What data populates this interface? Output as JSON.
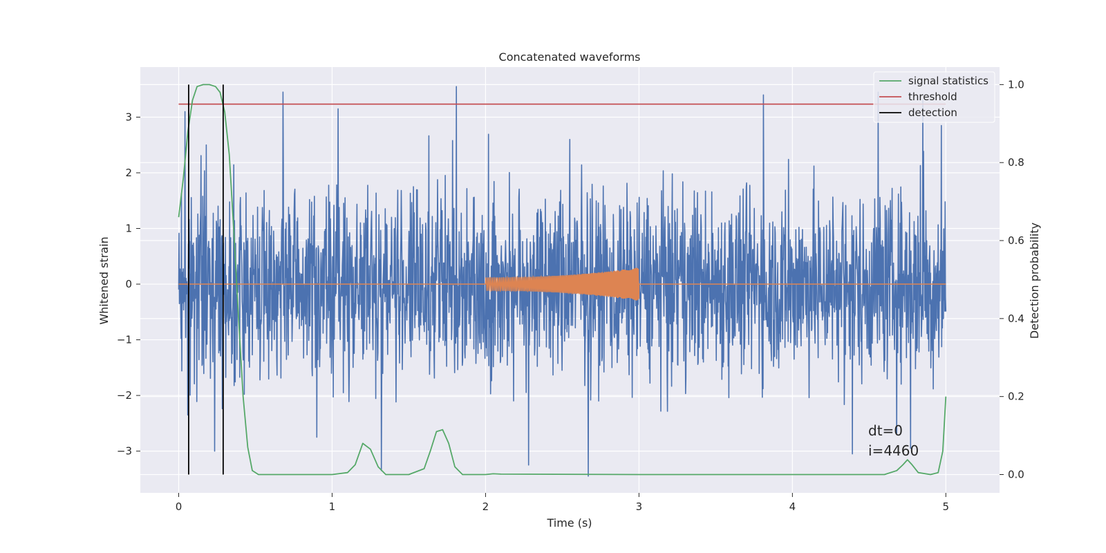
{
  "chart_data": {
    "type": "line",
    "title": "Concatenated waveforms",
    "xlabel": "Time (s)",
    "ylabel": "Whitened strain",
    "y2label": "Detection probability",
    "xlim": [
      -0.25,
      5.35
    ],
    "ylim": [
      -3.75,
      3.9
    ],
    "y2lim": [
      -0.047,
      1.045
    ],
    "xticks": [
      0,
      1,
      2,
      3,
      4,
      5
    ],
    "xtick_labels": [
      "0",
      "1",
      "2",
      "3",
      "4",
      "5"
    ],
    "yticks": [
      -3,
      -2,
      -1,
      0,
      1,
      2,
      3
    ],
    "ytick_labels": [
      "−3",
      "−2",
      "−1",
      "0",
      "1",
      "2",
      "3"
    ],
    "y2ticks": [
      0.0,
      0.2,
      0.4,
      0.6,
      0.8,
      1.0
    ],
    "y2tick_labels": [
      "0.0",
      "0.2",
      "0.4",
      "0.6",
      "0.8",
      "1.0"
    ],
    "grid": true,
    "legend_position": "top-right",
    "legend": [
      "signal statistics",
      "threshold",
      "detection"
    ],
    "colors": {
      "strain": "#4c72b0",
      "waveform": "#dd8452",
      "signal_statistics": "#55a868",
      "threshold": "#c44e52",
      "detection": "#000000",
      "background": "#eaeaf2",
      "grid": "#ffffff"
    },
    "threshold": {
      "y": 0.95,
      "x_range": [
        0,
        5
      ]
    },
    "detections": [
      {
        "x": 0.065,
        "y_range": [
          0.0,
          1.0
        ]
      },
      {
        "x": 0.29,
        "y_range": [
          0.0,
          1.0
        ]
      }
    ],
    "strain_series": {
      "name": "whitened strain",
      "x_range": [
        0,
        5
      ],
      "typical_range": [
        -1.7,
        1.8
      ],
      "peaks_high": [
        [
          0.04,
          3.1
        ],
        [
          0.18,
          2.5
        ],
        [
          0.68,
          3.45
        ],
        [
          1.04,
          3.15
        ],
        [
          1.81,
          3.55
        ],
        [
          2.55,
          2.6
        ],
        [
          3.81,
          3.4
        ],
        [
          4.56,
          3.45
        ],
        [
          4.85,
          3.3
        ],
        [
          4.97,
          2.85
        ]
      ],
      "peaks_low": [
        [
          0.06,
          -2.35
        ],
        [
          0.9,
          -2.75
        ],
        [
          1.32,
          -3.35
        ],
        [
          2.28,
          -3.25
        ],
        [
          2.67,
          -3.45
        ],
        [
          4.39,
          -3.05
        ],
        [
          4.77,
          -2.95
        ]
      ]
    },
    "waveform_series": {
      "name": "injected waveform",
      "x_range": [
        0,
        5
      ],
      "chirp_range": [
        2.0,
        3.0
      ],
      "amplitude_start": 0.12,
      "amplitude_end": 0.3
    },
    "signal_statistics": {
      "name": "signal statistics",
      "x": [
        0.0,
        0.03,
        0.06,
        0.09,
        0.12,
        0.16,
        0.2,
        0.24,
        0.27,
        0.3,
        0.33,
        0.36,
        0.39,
        0.42,
        0.45,
        0.48,
        0.52,
        0.6,
        1.0,
        1.1,
        1.15,
        1.2,
        1.25,
        1.3,
        1.35,
        1.5,
        1.6,
        1.64,
        1.68,
        1.72,
        1.76,
        1.8,
        1.85,
        2.0,
        2.05,
        2.1,
        3.0,
        4.0,
        4.6,
        4.68,
        4.72,
        4.75,
        4.78,
        4.82,
        4.9,
        4.95,
        4.98,
        5.0
      ],
      "y": [
        0.66,
        0.76,
        0.88,
        0.96,
        0.995,
        1.0,
        1.0,
        0.995,
        0.98,
        0.93,
        0.82,
        0.62,
        0.4,
        0.2,
        0.07,
        0.01,
        0.0,
        0.0,
        0.0,
        0.005,
        0.025,
        0.08,
        0.065,
        0.02,
        0.0,
        0.0,
        0.015,
        0.06,
        0.11,
        0.115,
        0.08,
        0.02,
        0.0,
        0.0,
        0.002,
        0.001,
        0.0,
        0.0,
        0.0,
        0.01,
        0.025,
        0.038,
        0.025,
        0.005,
        0.0,
        0.005,
        0.06,
        0.2
      ]
    },
    "annotations": [
      "dt=0",
      "i=4460"
    ]
  }
}
